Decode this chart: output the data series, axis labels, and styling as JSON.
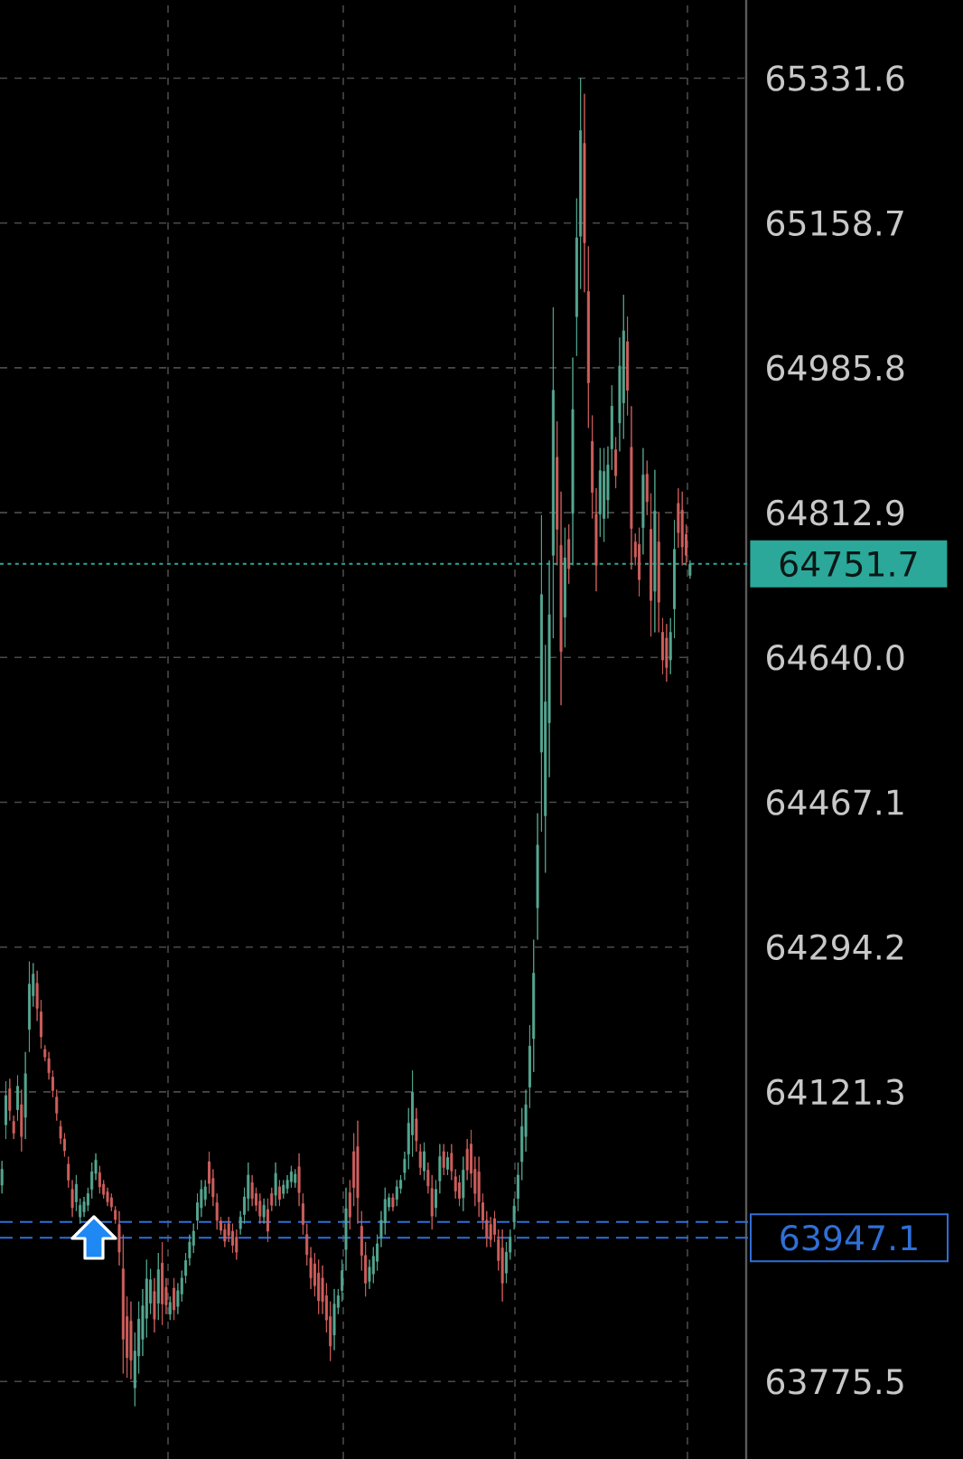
{
  "chart_data": {
    "type": "candlestick",
    "categories": [
      null,
      null,
      null,
      null,
      null,
      null,
      null,
      null,
      null,
      null,
      null,
      null,
      null,
      null,
      null,
      null,
      null,
      null,
      null,
      null,
      null,
      null,
      null,
      null,
      null,
      null,
      null,
      null,
      null,
      null,
      null,
      null,
      null,
      null,
      null,
      null,
      null,
      null,
      null,
      null,
      null,
      null,
      null,
      null,
      null,
      null,
      null,
      null,
      null,
      null,
      null,
      null,
      null,
      null,
      null,
      null,
      null,
      null,
      null,
      null,
      null,
      null,
      null,
      null,
      null,
      null,
      null,
      null,
      null,
      null,
      null,
      null,
      null,
      null,
      null,
      null,
      null,
      null,
      null,
      null,
      null,
      null,
      null,
      null,
      null,
      null,
      null,
      null,
      null,
      null,
      null,
      null,
      null,
      null,
      null,
      null,
      null,
      null,
      null,
      null,
      null,
      null,
      null,
      null,
      null,
      null,
      null,
      null,
      null,
      null,
      null,
      null,
      null,
      null,
      null,
      null,
      null,
      null,
      null,
      null,
      null,
      null,
      null,
      null,
      null,
      null,
      null,
      null,
      null,
      null,
      null,
      null,
      null,
      null,
      null,
      null,
      null,
      null,
      null,
      null,
      null,
      null,
      null,
      null,
      null,
      null,
      null,
      null,
      null,
      null,
      null,
      null,
      null,
      null,
      null,
      null,
      null,
      null,
      null,
      null,
      null,
      null,
      null,
      null,
      null,
      null,
      null,
      null,
      null,
      null,
      null,
      null,
      null,
      null,
      null,
      null,
      null
    ],
    "ohlc": [
      [
        64010,
        64039,
        64000,
        64029
      ],
      [
        64082,
        64134,
        64065,
        64117
      ],
      [
        64125,
        64137,
        64087,
        64099
      ],
      [
        64086,
        64093,
        64065,
        64072
      ],
      [
        64100,
        64141,
        64087,
        64128
      ],
      [
        64106,
        64124,
        64050,
        64068
      ],
      [
        64091,
        64169,
        64065,
        64143
      ],
      [
        64196,
        64277,
        64169,
        64250
      ],
      [
        64236,
        64275,
        64223,
        64262
      ],
      [
        64251,
        64266,
        64206,
        64221
      ],
      [
        64217,
        64231,
        64173,
        64187
      ],
      [
        64172,
        64177,
        64158,
        64163
      ],
      [
        64161,
        64169,
        64136,
        64144
      ],
      [
        64139,
        64147,
        64115,
        64123
      ],
      [
        64115,
        64124,
        64087,
        64096
      ],
      [
        64080,
        64087,
        64059,
        64066
      ],
      [
        64065,
        64072,
        64044,
        64051
      ],
      [
        64035,
        64044,
        64007,
        64016
      ],
      [
        64005,
        64016,
        63972,
        63983
      ],
      [
        63990,
        64022,
        63979,
        64011
      ],
      [
        63972,
        63994,
        63964,
        63986
      ],
      [
        63978,
        63996,
        63972,
        63990
      ],
      [
        63986,
        64007,
        63979,
        64000
      ],
      [
        64005,
        64037,
        63994,
        64026
      ],
      [
        64024,
        64048,
        64016,
        64040
      ],
      [
        64025,
        64033,
        64000,
        64008
      ],
      [
        64011,
        64016,
        63994,
        63999
      ],
      [
        64002,
        64007,
        63985,
        63990
      ],
      [
        63995,
        64000,
        63979,
        63984
      ],
      [
        63980,
        63985,
        63964,
        63969
      ],
      [
        63963,
        63979,
        63914,
        63930
      ],
      [
        63910,
        63951,
        63785,
        63826
      ],
      [
        63853,
        63877,
        63780,
        63804
      ],
      [
        63848,
        63871,
        63778,
        63801
      ],
      [
        63768,
        63834,
        63746,
        63812
      ],
      [
        63806,
        63871,
        63785,
        63850
      ],
      [
        63826,
        63886,
        63806,
        63866
      ],
      [
        63851,
        63921,
        63828,
        63898
      ],
      [
        63869,
        63910,
        63856,
        63897
      ],
      [
        63883,
        63899,
        63834,
        63850
      ],
      [
        63869,
        63929,
        63849,
        63909
      ],
      [
        63917,
        63942,
        63843,
        63868
      ],
      [
        63888,
        63899,
        63856,
        63867
      ],
      [
        63856,
        63877,
        63849,
        63870
      ],
      [
        63887,
        63899,
        63849,
        63861
      ],
      [
        63865,
        63893,
        63856,
        63884
      ],
      [
        63880,
        63908,
        63871,
        63899
      ],
      [
        63902,
        63929,
        63893,
        63920
      ],
      [
        63923,
        63951,
        63914,
        63942
      ],
      [
        63938,
        63964,
        63929,
        63955
      ],
      [
        63968,
        64000,
        63957,
        63989
      ],
      [
        63983,
        64016,
        63972,
        64005
      ],
      [
        63993,
        64016,
        63985,
        64008
      ],
      [
        64038,
        64050,
        64000,
        64012
      ],
      [
        64018,
        64029,
        63985,
        63996
      ],
      [
        63989,
        64000,
        63957,
        63968
      ],
      [
        63967,
        63972,
        63951,
        63956
      ],
      [
        63957,
        63964,
        63936,
        63943
      ],
      [
        63964,
        63972,
        63942,
        63950
      ],
      [
        63955,
        63964,
        63929,
        63938
      ],
      [
        63948,
        63957,
        63921,
        63930
      ],
      [
        63958,
        63979,
        63951,
        63972
      ],
      [
        63975,
        64007,
        63964,
        63996
      ],
      [
        63994,
        64037,
        63979,
        64022
      ],
      [
        64013,
        64022,
        63985,
        63994
      ],
      [
        64000,
        64007,
        63979,
        63986
      ],
      [
        63991,
        64000,
        63964,
        63973
      ],
      [
        63972,
        63994,
        63964,
        63986
      ],
      [
        63981,
        63994,
        63942,
        63955
      ],
      [
        64000,
        64007,
        63979,
        63986
      ],
      [
        63998,
        64037,
        63985,
        64024
      ],
      [
        64008,
        64016,
        63985,
        63993
      ],
      [
        64000,
        64016,
        63994,
        64010
      ],
      [
        64006,
        64022,
        64000,
        64016
      ],
      [
        64014,
        64033,
        64007,
        64026
      ],
      [
        64013,
        64029,
        64007,
        64023
      ],
      [
        64032,
        64048,
        63985,
        64001
      ],
      [
        63988,
        64000,
        63951,
        63963
      ],
      [
        63951,
        63964,
        63914,
        63927
      ],
      [
        63923,
        63936,
        63886,
        63899
      ],
      [
        63916,
        63929,
        63877,
        63890
      ],
      [
        63905,
        63921,
        63856,
        63872
      ],
      [
        63899,
        63914,
        63856,
        63871
      ],
      [
        63878,
        63893,
        63834,
        63849
      ],
      [
        63853,
        63871,
        63800,
        63818
      ],
      [
        63831,
        63886,
        63813,
        63868
      ],
      [
        63864,
        63886,
        63856,
        63878
      ],
      [
        63884,
        63921,
        63871,
        63908
      ],
      [
        63933,
        64007,
        63908,
        63982
      ],
      [
        64001,
        64016,
        63957,
        63972
      ],
      [
        64050,
        64072,
        63985,
        64007
      ],
      [
        64056,
        64087,
        63964,
        63995
      ],
      [
        63961,
        63979,
        63908,
        63926
      ],
      [
        63926,
        63942,
        63877,
        63893
      ],
      [
        63895,
        63921,
        63886,
        63912
      ],
      [
        63904,
        63936,
        63893,
        63925
      ],
      [
        63919,
        63951,
        63908,
        63940
      ],
      [
        63947,
        63979,
        63936,
        63968
      ],
      [
        63965,
        64007,
        63951,
        63993
      ],
      [
        63984,
        64000,
        63979,
        63995
      ],
      [
        63995,
        64000,
        63979,
        63984
      ],
      [
        63993,
        64016,
        63985,
        64008
      ],
      [
        64006,
        64022,
        64000,
        64016
      ],
      [
        64025,
        64050,
        64016,
        64041
      ],
      [
        64047,
        64102,
        64029,
        64084
      ],
      [
        64070,
        64147,
        64044,
        64121
      ],
      [
        64089,
        64102,
        64050,
        64063
      ],
      [
        64050,
        64059,
        64022,
        64031
      ],
      [
        64027,
        64061,
        64016,
        64050
      ],
      [
        64028,
        64037,
        64000,
        64009
      ],
      [
        64006,
        64022,
        63957,
        63973
      ],
      [
        63983,
        64016,
        63972,
        64005
      ],
      [
        64015,
        64059,
        64000,
        64044
      ],
      [
        64050,
        64059,
        64022,
        64031
      ],
      [
        64029,
        64050,
        64022,
        64043
      ],
      [
        64048,
        64059,
        64016,
        64027
      ],
      [
        64020,
        64029,
        63994,
        64003
      ],
      [
        64013,
        64022,
        63985,
        63994
      ],
      [
        63995,
        64044,
        63979,
        64028
      ],
      [
        64053,
        64065,
        64016,
        64028
      ],
      [
        64059,
        64076,
        64007,
        64024
      ],
      [
        64029,
        64044,
        63985,
        64000
      ],
      [
        64026,
        64044,
        63972,
        63990
      ],
      [
        63989,
        64000,
        63957,
        63968
      ],
      [
        63968,
        63979,
        63936,
        63947
      ],
      [
        63963,
        63972,
        63936,
        63945
      ],
      [
        63970,
        63979,
        63942,
        63951
      ],
      [
        63945,
        63957,
        63908,
        63920
      ],
      [
        63935,
        63957,
        63871,
        63893
      ],
      [
        63905,
        63942,
        63893,
        63930
      ],
      [
        63930,
        63957,
        63921,
        63948
      ],
      [
        63966,
        63994,
        63957,
        63985
      ],
      [
        63994,
        64037,
        63979,
        64022
      ],
      [
        64038,
        64102,
        64016,
        64080
      ],
      [
        64068,
        64124,
        64050,
        64106
      ],
      [
        64127,
        64201,
        64102,
        64176
      ],
      [
        64185,
        64303,
        64145,
        64263
      ],
      [
        64341,
        64454,
        64303,
        64416
      ],
      [
        64527,
        64810,
        64432,
        64715
      ],
      [
        64451,
        64655,
        64383,
        64587
      ],
      [
        64562,
        64756,
        64497,
        64691
      ],
      [
        64762,
        65058,
        64663,
        64959
      ],
      [
        64879,
        64922,
        64750,
        64793
      ],
      [
        64774,
        64838,
        64583,
        64647
      ],
      [
        64688,
        64795,
        64652,
        64759
      ],
      [
        64781,
        64799,
        64728,
        64746
      ],
      [
        64812,
        64998,
        64750,
        64936
      ],
      [
        65047,
        65188,
        65000,
        65141
      ],
      [
        65143,
        65331.6,
        65080,
        65269
      ],
      [
        65254,
        65313,
        65076,
        65135
      ],
      [
        65077,
        65131,
        64914,
        64968
      ],
      [
        64898,
        64929,
        64806,
        64837
      ],
      [
        64811,
        64842,
        64719,
        64750
      ],
      [
        64811,
        64890,
        64784,
        64863
      ],
      [
        64806,
        64890,
        64778,
        64862
      ],
      [
        64828,
        64892,
        64806,
        64870
      ],
      [
        64889,
        64965,
        64864,
        64940
      ],
      [
        64888,
        64903,
        64842,
        64857
      ],
      [
        64920,
        65022,
        64886,
        64988
      ],
      [
        64944,
        65073,
        64901,
        65030
      ],
      [
        65017,
        65047,
        64929,
        64959
      ],
      [
        64891,
        64940,
        64745,
        64794
      ],
      [
        64778,
        64788,
        64750,
        64760
      ],
      [
        64775,
        64795,
        64713,
        64733
      ],
      [
        64795,
        64890,
        64763,
        64858
      ],
      [
        64859,
        64875,
        64810,
        64826
      ],
      [
        64793,
        64836,
        64665,
        64708
      ],
      [
        64719,
        64864,
        64670,
        64815
      ],
      [
        64778,
        64814,
        64670,
        64706
      ],
      [
        64670,
        64687,
        64620,
        64637
      ],
      [
        64663,
        64680,
        64611,
        64628
      ],
      [
        64637,
        64687,
        64620,
        64670
      ],
      [
        64698,
        64804,
        64663,
        64769
      ],
      [
        64824,
        64842,
        64771,
        64789
      ],
      [
        64816,
        64838,
        64750,
        64772
      ],
      [
        64787,
        64799,
        64750,
        64762
      ],
      [
        64738,
        64756,
        64734,
        64751.7
      ]
    ],
    "colors": [
      "#56a892",
      "#56a892",
      "#d0605e",
      "#d0605e",
      "#56a892",
      "#d0605e",
      "#56a892",
      "#56a892",
      "#56a892",
      "#d0605e",
      "#d0605e",
      "#d0605e",
      "#d0605e",
      "#d0605e",
      "#d0605e",
      "#d0605e",
      "#d0605e",
      "#d0605e",
      "#d0605e",
      "#56a892",
      "#56a892",
      "#56a892",
      "#56a892",
      "#56a892",
      "#56a892",
      "#d0605e",
      "#d0605e",
      "#d0605e",
      "#d0605e",
      "#d0605e",
      "#d0605e",
      "#d0605e",
      "#d0605e",
      "#d0605e",
      "#56a892",
      "#56a892",
      "#56a892",
      "#56a892",
      "#56a892",
      "#d0605e",
      "#56a892",
      "#d0605e",
      "#d0605e",
      "#56a892",
      "#d0605e",
      "#56a892",
      "#56a892",
      "#56a892",
      "#56a892",
      "#56a892",
      "#56a892",
      "#56a892",
      "#56a892",
      "#d0605e",
      "#d0605e",
      "#d0605e",
      "#d0605e",
      "#d0605e",
      "#d0605e",
      "#d0605e",
      "#d0605e",
      "#56a892",
      "#56a892",
      "#56a892",
      "#d0605e",
      "#d0605e",
      "#d0605e",
      "#56a892",
      "#d0605e",
      "#d0605e",
      "#56a892",
      "#d0605e",
      "#56a892",
      "#56a892",
      "#56a892",
      "#56a892",
      "#d0605e",
      "#d0605e",
      "#d0605e",
      "#d0605e",
      "#d0605e",
      "#d0605e",
      "#d0605e",
      "#d0605e",
      "#d0605e",
      "#56a892",
      "#56a892",
      "#56a892",
      "#56a892",
      "#d0605e",
      "#d0605e",
      "#d0605e",
      "#d0605e",
      "#d0605e",
      "#56a892",
      "#56a892",
      "#56a892",
      "#56a892",
      "#56a892",
      "#56a892",
      "#d0605e",
      "#56a892",
      "#56a892",
      "#56a892",
      "#56a892",
      "#56a892",
      "#d0605e",
      "#d0605e",
      "#56a892",
      "#d0605e",
      "#d0605e",
      "#56a892",
      "#56a892",
      "#d0605e",
      "#56a892",
      "#d0605e",
      "#d0605e",
      "#d0605e",
      "#56a892",
      "#d0605e",
      "#d0605e",
      "#d0605e",
      "#d0605e",
      "#d0605e",
      "#d0605e",
      "#d0605e",
      "#d0605e",
      "#d0605e",
      "#d0605e",
      "#56a892",
      "#56a892",
      "#56a892",
      "#56a892",
      "#56a892",
      "#56a892",
      "#56a892",
      "#56a892",
      "#56a892",
      "#56a892",
      "#56a892",
      "#56a892",
      "#56a892",
      "#d0605e",
      "#d0605e",
      "#56a892",
      "#d0605e",
      "#56a892",
      "#56a892",
      "#56a892",
      "#d0605e",
      "#d0605e",
      "#d0605e",
      "#d0605e",
      "#56a892",
      "#56a892",
      "#56a892",
      "#56a892",
      "#d0605e",
      "#56a892",
      "#56a892",
      "#d0605e",
      "#d0605e",
      "#d0605e",
      "#d0605e",
      "#56a892",
      "#d0605e",
      "#d0605e",
      "#56a892",
      "#d0605e",
      "#d0605e",
      "#d0605e",
      "#56a892",
      "#56a892",
      "#d0605e",
      "#d0605e",
      "#d0605e",
      "#56a892"
    ],
    "ylim": [
      63683,
      65425
    ],
    "yticks": [
      63775.5,
      64121.3,
      64294.2,
      64467.1,
      {
        "value": 64640.0,
        "label": "64640.0"
      },
      64812.9,
      64985.8,
      65158.7,
      65331.6
    ],
    "grid": true,
    "tick_labels": "y",
    "ref_lines": [
      {
        "axis": "y",
        "value": 64751.7,
        "label": "64751.7",
        "color": "#2ba89a",
        "line_style": "dotted"
      },
      {
        "axis": "y",
        "value": 63966,
        "color": "#2f6fd6",
        "line_style": "dashed"
      },
      {
        "axis": "y",
        "value": 63947.1,
        "label": "63947.1",
        "color": "#2f6fd6",
        "line_style": "dashed"
      }
    ]
  }
}
